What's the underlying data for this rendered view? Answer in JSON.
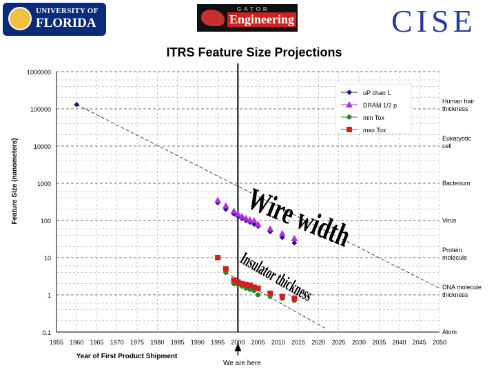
{
  "logos": {
    "uf_line1": "UNIVERSITY OF",
    "uf_line2": "FLORIDA",
    "eng_small": "GATOR",
    "eng_big": "Engineering",
    "cise": "CISE"
  },
  "chart_data": {
    "type": "scatter",
    "title": "ITRS Feature Size Projections",
    "xlabel": "Year of First Product Shipment",
    "ylabel": "Feature Size (nanometers)",
    "xlim": [
      1955,
      2050
    ],
    "ylim": [
      0.1,
      1000000
    ],
    "y_scale": "log",
    "x_ticks": [
      "1955",
      "1960",
      "1965",
      "1970",
      "1975",
      "1980",
      "1985",
      "1990",
      "1995",
      "2000",
      "2005",
      "2010",
      "2015",
      "2020",
      "2025",
      "2030",
      "2035",
      "2040",
      "2045",
      "2050"
    ],
    "y_ticks": [
      "1000000",
      "100000",
      "10000",
      "1000",
      "100",
      "10",
      "1",
      "0.1"
    ],
    "legend_position": "top-right",
    "series": [
      {
        "name": "uP chan L",
        "color": "#1a1a8c",
        "marker": "diamond",
        "x": [
          1960,
          1995,
          1997,
          1999,
          2000,
          2001,
          2002,
          2003,
          2004,
          2005,
          2008,
          2011,
          2014
        ],
        "y": [
          130000,
          300,
          200,
          150,
          130,
          115,
          100,
          90,
          80,
          70,
          50,
          35,
          25
        ]
      },
      {
        "name": "DRAM 1/2 p",
        "color": "#b030e0",
        "marker": "triangle",
        "x": [
          1995,
          1997,
          1999,
          2000,
          2001,
          2002,
          2003,
          2004,
          2005,
          2008,
          2011,
          2014
        ],
        "y": [
          350,
          250,
          180,
          150,
          130,
          115,
          105,
          100,
          80,
          60,
          45,
          33
        ]
      },
      {
        "name": "min Tox",
        "color": "#2a8a2a",
        "marker": "circle",
        "x": [
          1997,
          1999,
          2000,
          2001,
          2002,
          2003,
          2004,
          2005,
          2008,
          2011,
          2014
        ],
        "y": [
          4,
          2,
          1.9,
          1.7,
          1.5,
          1.4,
          1.3,
          1,
          0.9,
          0.8,
          0.7
        ]
      },
      {
        "name": "max Tox",
        "color": "#d02020",
        "marker": "square",
        "x": [
          1995,
          1997,
          1999,
          2000,
          2001,
          2002,
          2003,
          2004,
          2005,
          2008,
          2011,
          2014
        ],
        "y": [
          10,
          5,
          2.5,
          2.2,
          2,
          1.9,
          1.8,
          1.6,
          1.5,
          1.1,
          0.9,
          0.8
        ]
      }
    ],
    "trend_lines": [
      {
        "x": [
          1960,
          2050
        ],
        "y": [
          130000,
          1.5
        ]
      },
      {
        "x": [
          1997,
          2022
        ],
        "y": [
          4,
          0.12
        ]
      }
    ],
    "reference_labels": [
      {
        "text": "Human hair thickness",
        "y": 100000
      },
      {
        "text": "Eukaryotic cell",
        "y": 10000
      },
      {
        "text": "Bacterium",
        "y": 1000
      },
      {
        "text": "Virus",
        "y": 100
      },
      {
        "text": "Protein molecule",
        "y": 10
      },
      {
        "text": "DNA molecule thickness",
        "y": 1
      },
      {
        "text": "Atom",
        "y": 0.1
      }
    ],
    "marker_line": {
      "x": 2000,
      "label": "We are here"
    },
    "annotations": [
      "Wire width",
      "Insulator thickness"
    ]
  }
}
